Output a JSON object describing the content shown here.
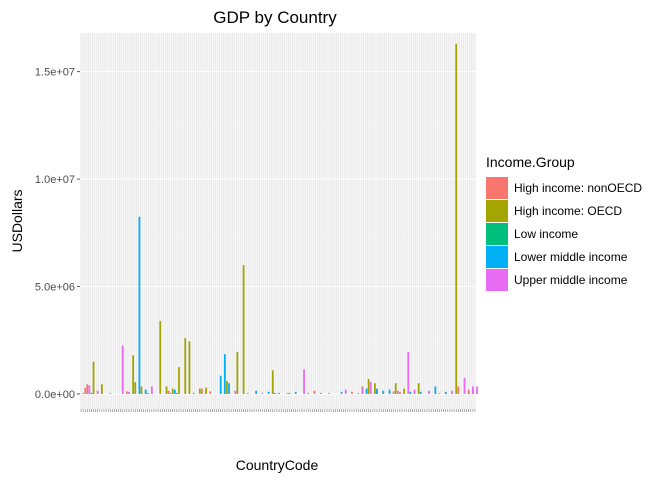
{
  "chart_data": {
    "type": "bar",
    "title": "GDP by Country",
    "xlabel": "CountryCode",
    "ylabel": "USDollars",
    "ylim": [
      -700000,
      16800000
    ],
    "y_ticks": [
      0,
      5000000,
      10000000,
      15000000
    ],
    "y_tick_labels": [
      "0.0e+00",
      "5.0e+06",
      "1.0e+07",
      "1.5e+07"
    ],
    "grid": true,
    "legend_position": "right",
    "legend_title": "Income.Group",
    "category_count": 190,
    "series": [
      {
        "name": "High income: nonOECD",
        "color": "#F8766D",
        "points": [
          [
            2,
            0.28
          ],
          [
            3,
            0.45
          ],
          [
            22,
            0.12
          ],
          [
            42,
            0.15
          ],
          [
            58,
            0.25
          ],
          [
            60,
            0.18
          ],
          [
            62,
            0.12
          ],
          [
            112,
            0.15
          ],
          [
            130,
            0.1
          ],
          [
            142,
            0.2
          ],
          [
            150,
            0.12
          ],
          [
            153,
            0.1
          ],
          [
            170,
            0.1
          ],
          [
            181,
            0.35
          ],
          [
            186,
            0.2
          ]
        ]
      },
      {
        "name": "High income: OECD",
        "color": "#A3A500",
        "points": [
          [
            6,
            1.5
          ],
          [
            10,
            0.45
          ],
          [
            25,
            1.8
          ],
          [
            26,
            0.55
          ],
          [
            29,
            0.35
          ],
          [
            38,
            3.4
          ],
          [
            41,
            0.35
          ],
          [
            44,
            0.25
          ],
          [
            47,
            1.25
          ],
          [
            50,
            2.6
          ],
          [
            52,
            2.45
          ],
          [
            57,
            0.25
          ],
          [
            60,
            0.3
          ],
          [
            70,
            0.6
          ],
          [
            75,
            1.95
          ],
          [
            78,
            6.0
          ],
          [
            92,
            1.1
          ],
          [
            135,
            0.35
          ],
          [
            138,
            0.7
          ],
          [
            141,
            0.5
          ],
          [
            151,
            0.5
          ],
          [
            155,
            0.25
          ],
          [
            162,
            0.5
          ],
          [
            180,
            16.3
          ]
        ]
      },
      {
        "name": "Low income",
        "color": "#00BF7D",
        "points": [
          [
            1,
            0.03
          ],
          [
            14,
            0.03
          ],
          [
            32,
            0.04
          ],
          [
            67,
            0.03
          ],
          [
            99,
            0.03
          ],
          [
            119,
            0.03
          ],
          [
            133,
            0.03
          ],
          [
            145,
            0.05
          ],
          [
            172,
            0.03
          ]
        ]
      },
      {
        "name": "Lower middle income",
        "color": "#00B0F6",
        "points": [
          [
            5,
            0.05
          ],
          [
            28,
            8.25
          ],
          [
            31,
            0.2
          ],
          [
            45,
            0.2
          ],
          [
            46,
            0.05
          ],
          [
            54,
            0.05
          ],
          [
            67,
            0.85
          ],
          [
            69,
            1.85
          ],
          [
            71,
            0.5
          ],
          [
            84,
            0.15
          ],
          [
            90,
            0.1
          ],
          [
            93,
            0.05
          ],
          [
            95,
            0.05
          ],
          [
            100,
            0.05
          ],
          [
            103,
            0.1
          ],
          [
            115,
            0.05
          ],
          [
            125,
            0.1
          ],
          [
            137,
            0.25
          ],
          [
            142,
            0.25
          ],
          [
            145,
            0.15
          ],
          [
            148,
            0.2
          ],
          [
            158,
            0.1
          ],
          [
            163,
            0.1
          ],
          [
            170,
            0.35
          ],
          [
            175,
            0.1
          ],
          [
            178,
            0.05
          ],
          [
            186,
            0.05
          ],
          [
            188,
            0.15
          ]
        ]
      },
      {
        "name": "Upper middle income",
        "color": "#E76BF3",
        "points": [
          [
            4,
            0.4
          ],
          [
            8,
            0.15
          ],
          [
            20,
            2.25
          ],
          [
            23,
            0.1
          ],
          [
            34,
            0.35
          ],
          [
            43,
            0.05
          ],
          [
            74,
            0.15
          ],
          [
            80,
            0.05
          ],
          [
            87,
            0.05
          ],
          [
            107,
            1.15
          ],
          [
            109,
            0.05
          ],
          [
            127,
            0.2
          ],
          [
            135,
            0.3
          ],
          [
            139,
            0.55
          ],
          [
            152,
            0.15
          ],
          [
            157,
            1.95
          ],
          [
            160,
            0.2
          ],
          [
            167,
            0.15
          ],
          [
            178,
            0.15
          ],
          [
            184,
            0.75
          ],
          [
            188,
            0.35
          ],
          [
            190,
            0.35
          ]
        ]
      }
    ]
  }
}
